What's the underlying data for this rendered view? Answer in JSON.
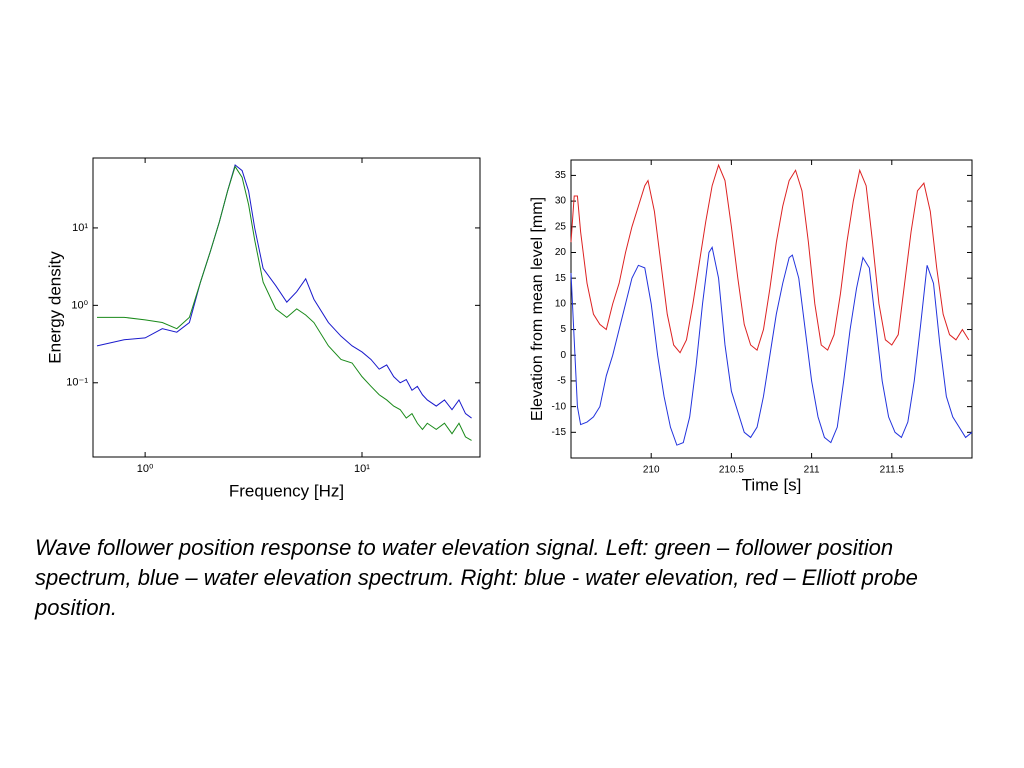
{
  "chart_data": [
    {
      "type": "line",
      "xlabel": "Frequency [Hz]",
      "ylabel": "Energy density",
      "xscale": "log",
      "yscale": "log",
      "xlim": [
        0.575,
        35
      ],
      "ylim": [
        0.011,
        80
      ],
      "xticks": [
        {
          "value": 1,
          "label": "10⁰"
        },
        {
          "value": 10,
          "label": "10¹"
        }
      ],
      "yticks": [
        {
          "value": 0.1,
          "label": "10⁻¹"
        },
        {
          "value": 1,
          "label": "10⁰"
        },
        {
          "value": 10,
          "label": "10¹"
        }
      ],
      "series": [
        {
          "color": "#1a1acc",
          "x": [
            0.6,
            0.8,
            1.0,
            1.2,
            1.4,
            1.6,
            1.8,
            2.0,
            2.2,
            2.4,
            2.6,
            2.8,
            3.0,
            3.2,
            3.5,
            4.0,
            4.5,
            5.0,
            5.5,
            6,
            7,
            8,
            9,
            10,
            11,
            12,
            13,
            14,
            15,
            16,
            17,
            18,
            19,
            20,
            22,
            24,
            26,
            28,
            30,
            32
          ],
          "values": [
            0.3,
            0.36,
            0.38,
            0.5,
            0.45,
            0.6,
            2,
            5,
            12,
            30,
            65,
            55,
            30,
            10,
            3,
            1.8,
            1.1,
            1.5,
            2.2,
            1.2,
            0.6,
            0.4,
            0.3,
            0.25,
            0.2,
            0.15,
            0.17,
            0.12,
            0.1,
            0.11,
            0.08,
            0.09,
            0.07,
            0.06,
            0.05,
            0.06,
            0.045,
            0.06,
            0.04,
            0.035
          ]
        },
        {
          "color": "#1a8a1a",
          "x": [
            0.6,
            0.8,
            1.0,
            1.2,
            1.4,
            1.6,
            1.8,
            2.0,
            2.2,
            2.4,
            2.6,
            2.8,
            3.0,
            3.2,
            3.5,
            4.0,
            4.5,
            5.0,
            5.5,
            6,
            7,
            8,
            9,
            10,
            11,
            12,
            13,
            14,
            15,
            16,
            17,
            18,
            19,
            20,
            22,
            24,
            26,
            28,
            30,
            32
          ],
          "values": [
            0.7,
            0.7,
            0.65,
            0.6,
            0.5,
            0.7,
            2,
            5,
            12,
            30,
            62,
            45,
            20,
            7,
            2,
            0.9,
            0.7,
            0.9,
            0.75,
            0.6,
            0.3,
            0.2,
            0.18,
            0.12,
            0.09,
            0.07,
            0.06,
            0.05,
            0.045,
            0.035,
            0.04,
            0.03,
            0.025,
            0.03,
            0.025,
            0.03,
            0.022,
            0.03,
            0.02,
            0.018
          ]
        }
      ]
    },
    {
      "type": "line",
      "xlabel": "Time [s]",
      "ylabel": "Elevation from mean level [mm]",
      "xlim": [
        209.5,
        212
      ],
      "ylim": [
        -20,
        38
      ],
      "xticks": [
        210,
        210.5,
        211,
        211.5
      ],
      "yticks": [
        -15,
        -10,
        -5,
        0,
        5,
        10,
        15,
        20,
        25,
        30,
        35
      ],
      "series": [
        {
          "color": "#dd2222",
          "x": [
            209.5,
            209.52,
            209.54,
            209.56,
            209.6,
            209.64,
            209.68,
            209.72,
            209.76,
            209.8,
            209.84,
            209.88,
            209.92,
            209.96,
            209.98,
            210.02,
            210.06,
            210.1,
            210.14,
            210.18,
            210.22,
            210.26,
            210.3,
            210.34,
            210.38,
            210.42,
            210.46,
            210.5,
            210.54,
            210.58,
            210.62,
            210.66,
            210.7,
            210.74,
            210.78,
            210.82,
            210.86,
            210.9,
            210.94,
            210.98,
            211.02,
            211.06,
            211.1,
            211.14,
            211.18,
            211.22,
            211.26,
            211.3,
            211.34,
            211.38,
            211.42,
            211.46,
            211.5,
            211.54,
            211.58,
            211.62,
            211.66,
            211.7,
            211.74,
            211.78,
            211.82,
            211.86,
            211.9,
            211.94,
            211.98
          ],
          "values": [
            22,
            31,
            31,
            24,
            14,
            8,
            6,
            5,
            10,
            14,
            20,
            25,
            29,
            33,
            34,
            28,
            18,
            8,
            2,
            0.5,
            3,
            10,
            18,
            26,
            33,
            37,
            34,
            25,
            15,
            6,
            2,
            1,
            5,
            13,
            22,
            29,
            34,
            36,
            32,
            22,
            10,
            2,
            1,
            4,
            12,
            22,
            30,
            36,
            33,
            22,
            10,
            3,
            2,
            4,
            14,
            24,
            32,
            33.5,
            28,
            17,
            8,
            4,
            3,
            5,
            3
          ]
        },
        {
          "color": "#2233dd",
          "x": [
            209.5,
            209.52,
            209.54,
            209.56,
            209.6,
            209.64,
            209.68,
            209.72,
            209.76,
            209.8,
            209.84,
            209.88,
            209.92,
            209.96,
            210.0,
            210.04,
            210.08,
            210.12,
            210.16,
            210.2,
            210.24,
            210.28,
            210.32,
            210.36,
            210.38,
            210.42,
            210.46,
            210.5,
            210.54,
            210.58,
            210.62,
            210.66,
            210.7,
            210.74,
            210.78,
            210.82,
            210.86,
            210.88,
            210.92,
            210.96,
            211.0,
            211.04,
            211.08,
            211.12,
            211.16,
            211.2,
            211.24,
            211.28,
            211.32,
            211.36,
            211.4,
            211.44,
            211.48,
            211.52,
            211.56,
            211.6,
            211.64,
            211.68,
            211.72,
            211.76,
            211.8,
            211.84,
            211.88,
            211.92,
            211.96,
            212.0
          ],
          "values": [
            16,
            3,
            -10,
            -13.5,
            -13,
            -12,
            -10,
            -4,
            0,
            5,
            10,
            15,
            17.5,
            17,
            10,
            0,
            -8,
            -14,
            -17.5,
            -17,
            -12,
            -2,
            10,
            20,
            21,
            15,
            2,
            -7,
            -11,
            -15,
            -16,
            -14,
            -8,
            0,
            8,
            14,
            19,
            19.5,
            15,
            5,
            -5,
            -12,
            -16,
            -17,
            -14,
            -5,
            5,
            13,
            19,
            17,
            6,
            -5,
            -12,
            -15,
            -16,
            -13,
            -5,
            6,
            17.5,
            14,
            2,
            -8,
            -12,
            -14,
            -16,
            -15
          ]
        }
      ]
    }
  ],
  "caption": "Wave follower position response to water elevation signal. Left: green – follower position spectrum, blue – water elevation spectrum. Right: blue - water elevation, red – Elliott probe position."
}
